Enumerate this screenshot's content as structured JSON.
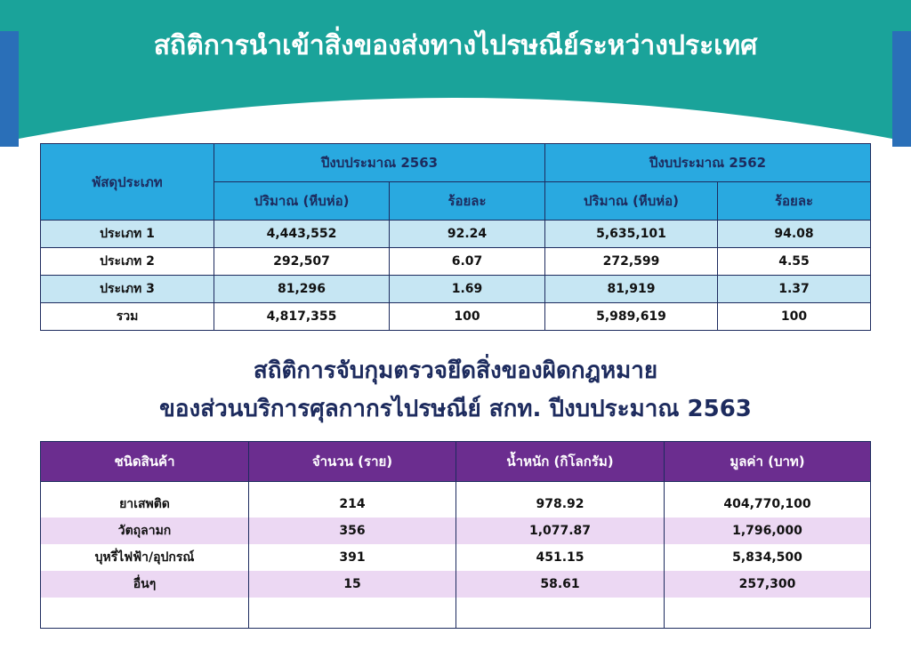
{
  "header": {
    "title": "สถิติการนำเข้าสิ่งของส่งทางไปรษณีย์ระหว่างประเทศ"
  },
  "table1": {
    "row_header": "พัสดุประเภท",
    "groups": [
      "ปีงบประมาณ 2563",
      "ปีงบประมาณ 2562"
    ],
    "subheaders": [
      "ปริมาณ (หีบห่อ)",
      "ร้อยละ",
      "ปริมาณ (หีบห่อ)",
      "ร้อยละ"
    ],
    "rows": [
      [
        "ประเภท 1",
        "4,443,552",
        "92.24",
        "5,635,101",
        "94.08"
      ],
      [
        "ประเภท 2",
        "292,507",
        "6.07",
        "272,599",
        "4.55"
      ],
      [
        "ประเภท 3",
        "81,296",
        "1.69",
        "81,919",
        "1.37"
      ],
      [
        "รวม",
        "4,817,355",
        "100",
        "5,989,619",
        "100"
      ]
    ]
  },
  "section2": {
    "title_lines": [
      "สถิติการจับกุมตรวจยึดสิ่งของผิดกฎหมาย",
      "ของส่วนบริการศุลกากรไปรษณีย์ สกท. ปีงบประมาณ 2563"
    ]
  },
  "table2": {
    "headers": [
      "ชนิดสินค้า",
      "จำนวน (ราย)",
      "น้ำหนัก (กิโลกรัม)",
      "มูลค่า (บาท)"
    ],
    "rows": [
      [
        "ยาเสพติด",
        "214",
        "978.92",
        "404,770,100"
      ],
      [
        "วัตถุลามก",
        "356",
        "1,077.87",
        "1,796,000"
      ],
      [
        "บุหรี่ไฟฟ้า/อุปกรณ์",
        "391",
        "451.15",
        "5,834,500"
      ],
      [
        "อื่นๆ",
        "15",
        "58.61",
        "257,300"
      ]
    ]
  }
}
